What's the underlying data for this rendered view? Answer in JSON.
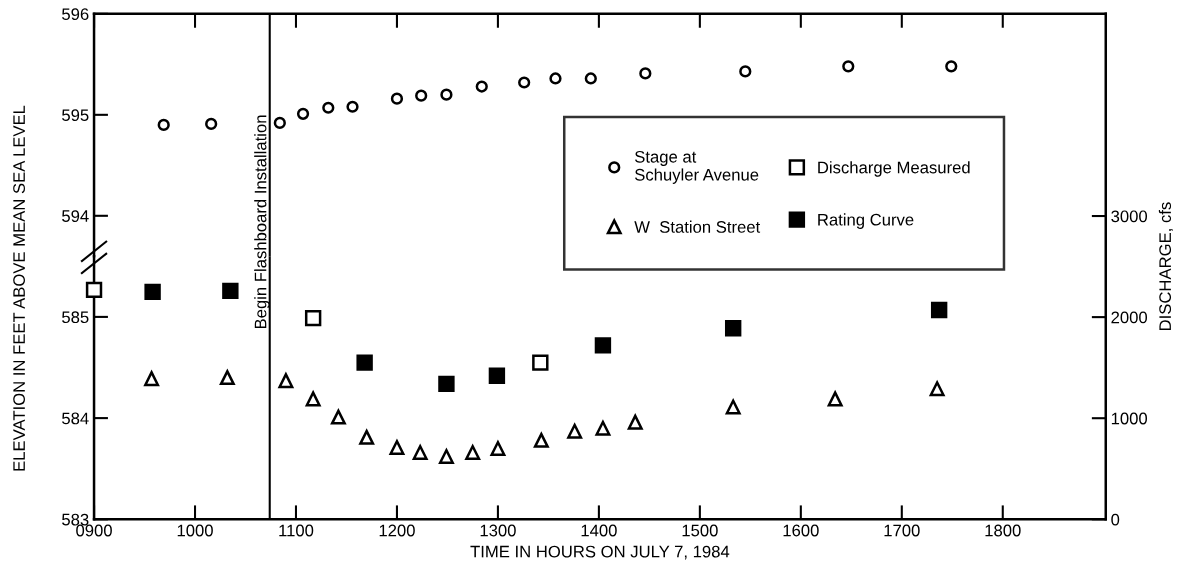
{
  "chart_data": [
    {
      "type": "scatter",
      "xlim": [
        900,
        1902
      ],
      "xticks": [
        900,
        1000,
        1100,
        1200,
        1300,
        1400,
        1500,
        1600,
        1700,
        1800
      ],
      "ylim": [
        593.6,
        596
      ],
      "yticks": [
        594,
        595,
        596
      ],
      "tick_labels": "y",
      "grid": false,
      "legend": "right",
      "ref_lines": [
        {
          "axis": "x",
          "value": 1074
        }
      ],
      "series": [
        {
          "name": "Stage at\nSchuyler Avenue",
          "color": "#ffffff",
          "marker": "circle",
          "x": [
            969,
            1016,
            1084,
            1107,
            1132,
            1156,
            1200,
            1224,
            1249,
            1284,
            1326,
            1357,
            1392,
            1446,
            1545,
            1647,
            1749
          ],
          "values": [
            594.9,
            594.91,
            594.92,
            595.01,
            595.07,
            595.08,
            595.16,
            595.19,
            595.2,
            595.28,
            595.32,
            595.36,
            595.36,
            595.41,
            595.43,
            595.48,
            595.48
          ]
        }
      ]
    },
    {
      "type": "scatter",
      "xlabel": "TIME IN HOURS ON JULY 7, 1984",
      "ylabel": "ELEVATION IN FEET ABOVE MEAN SEA LEVEL",
      "y2label": "DISCHARGE, cfs",
      "xlim": [
        900,
        1902
      ],
      "xticks": [
        {
          "value": 900,
          "label": "0900"
        },
        1000,
        1100,
        1200,
        1300,
        1400,
        1500,
        1600,
        1700,
        1800
      ],
      "ylim": [
        583,
        585.6
      ],
      "yticks": [
        583,
        584,
        585
      ],
      "y2lim": [
        0,
        5000
      ],
      "y2ticks": [
        0,
        1000,
        2000,
        3000
      ],
      "grid": false,
      "legend": "right",
      "ref_lines": [
        {
          "axis": "x",
          "value": 1074,
          "label": "Begin Flashboard Installation"
        }
      ],
      "series": [
        {
          "name": "W  Station Street",
          "color": "#ffffff",
          "marker": "triangle",
          "x": [
            957,
            1032,
            1090,
            1117,
            1142,
            1170,
            1200,
            1223,
            1249,
            1275,
            1300,
            1343,
            1376,
            1404,
            1436,
            1533,
            1634,
            1735
          ],
          "values": [
            584.39,
            584.4,
            584.37,
            584.19,
            584.01,
            583.81,
            583.71,
            583.66,
            583.62,
            583.66,
            583.7,
            583.78,
            583.87,
            583.9,
            583.96,
            584.11,
            584.19,
            584.29
          ]
        },
        {
          "name": "Discharge Measured",
          "color": "#ffffff",
          "marker": "square",
          "axis": "y2",
          "x": [
            900,
            1117,
            1342
          ],
          "values": [
            2270,
            1990,
            1550
          ]
        },
        {
          "name": "Rating Curve",
          "color": "#000000",
          "marker": "square",
          "axis": "y2",
          "x": [
            958,
            1035,
            1168,
            1249,
            1299,
            1404,
            1533,
            1737
          ],
          "values": [
            2250,
            2260,
            1550,
            1340,
            1420,
            1720,
            1890,
            2070
          ]
        }
      ]
    }
  ]
}
